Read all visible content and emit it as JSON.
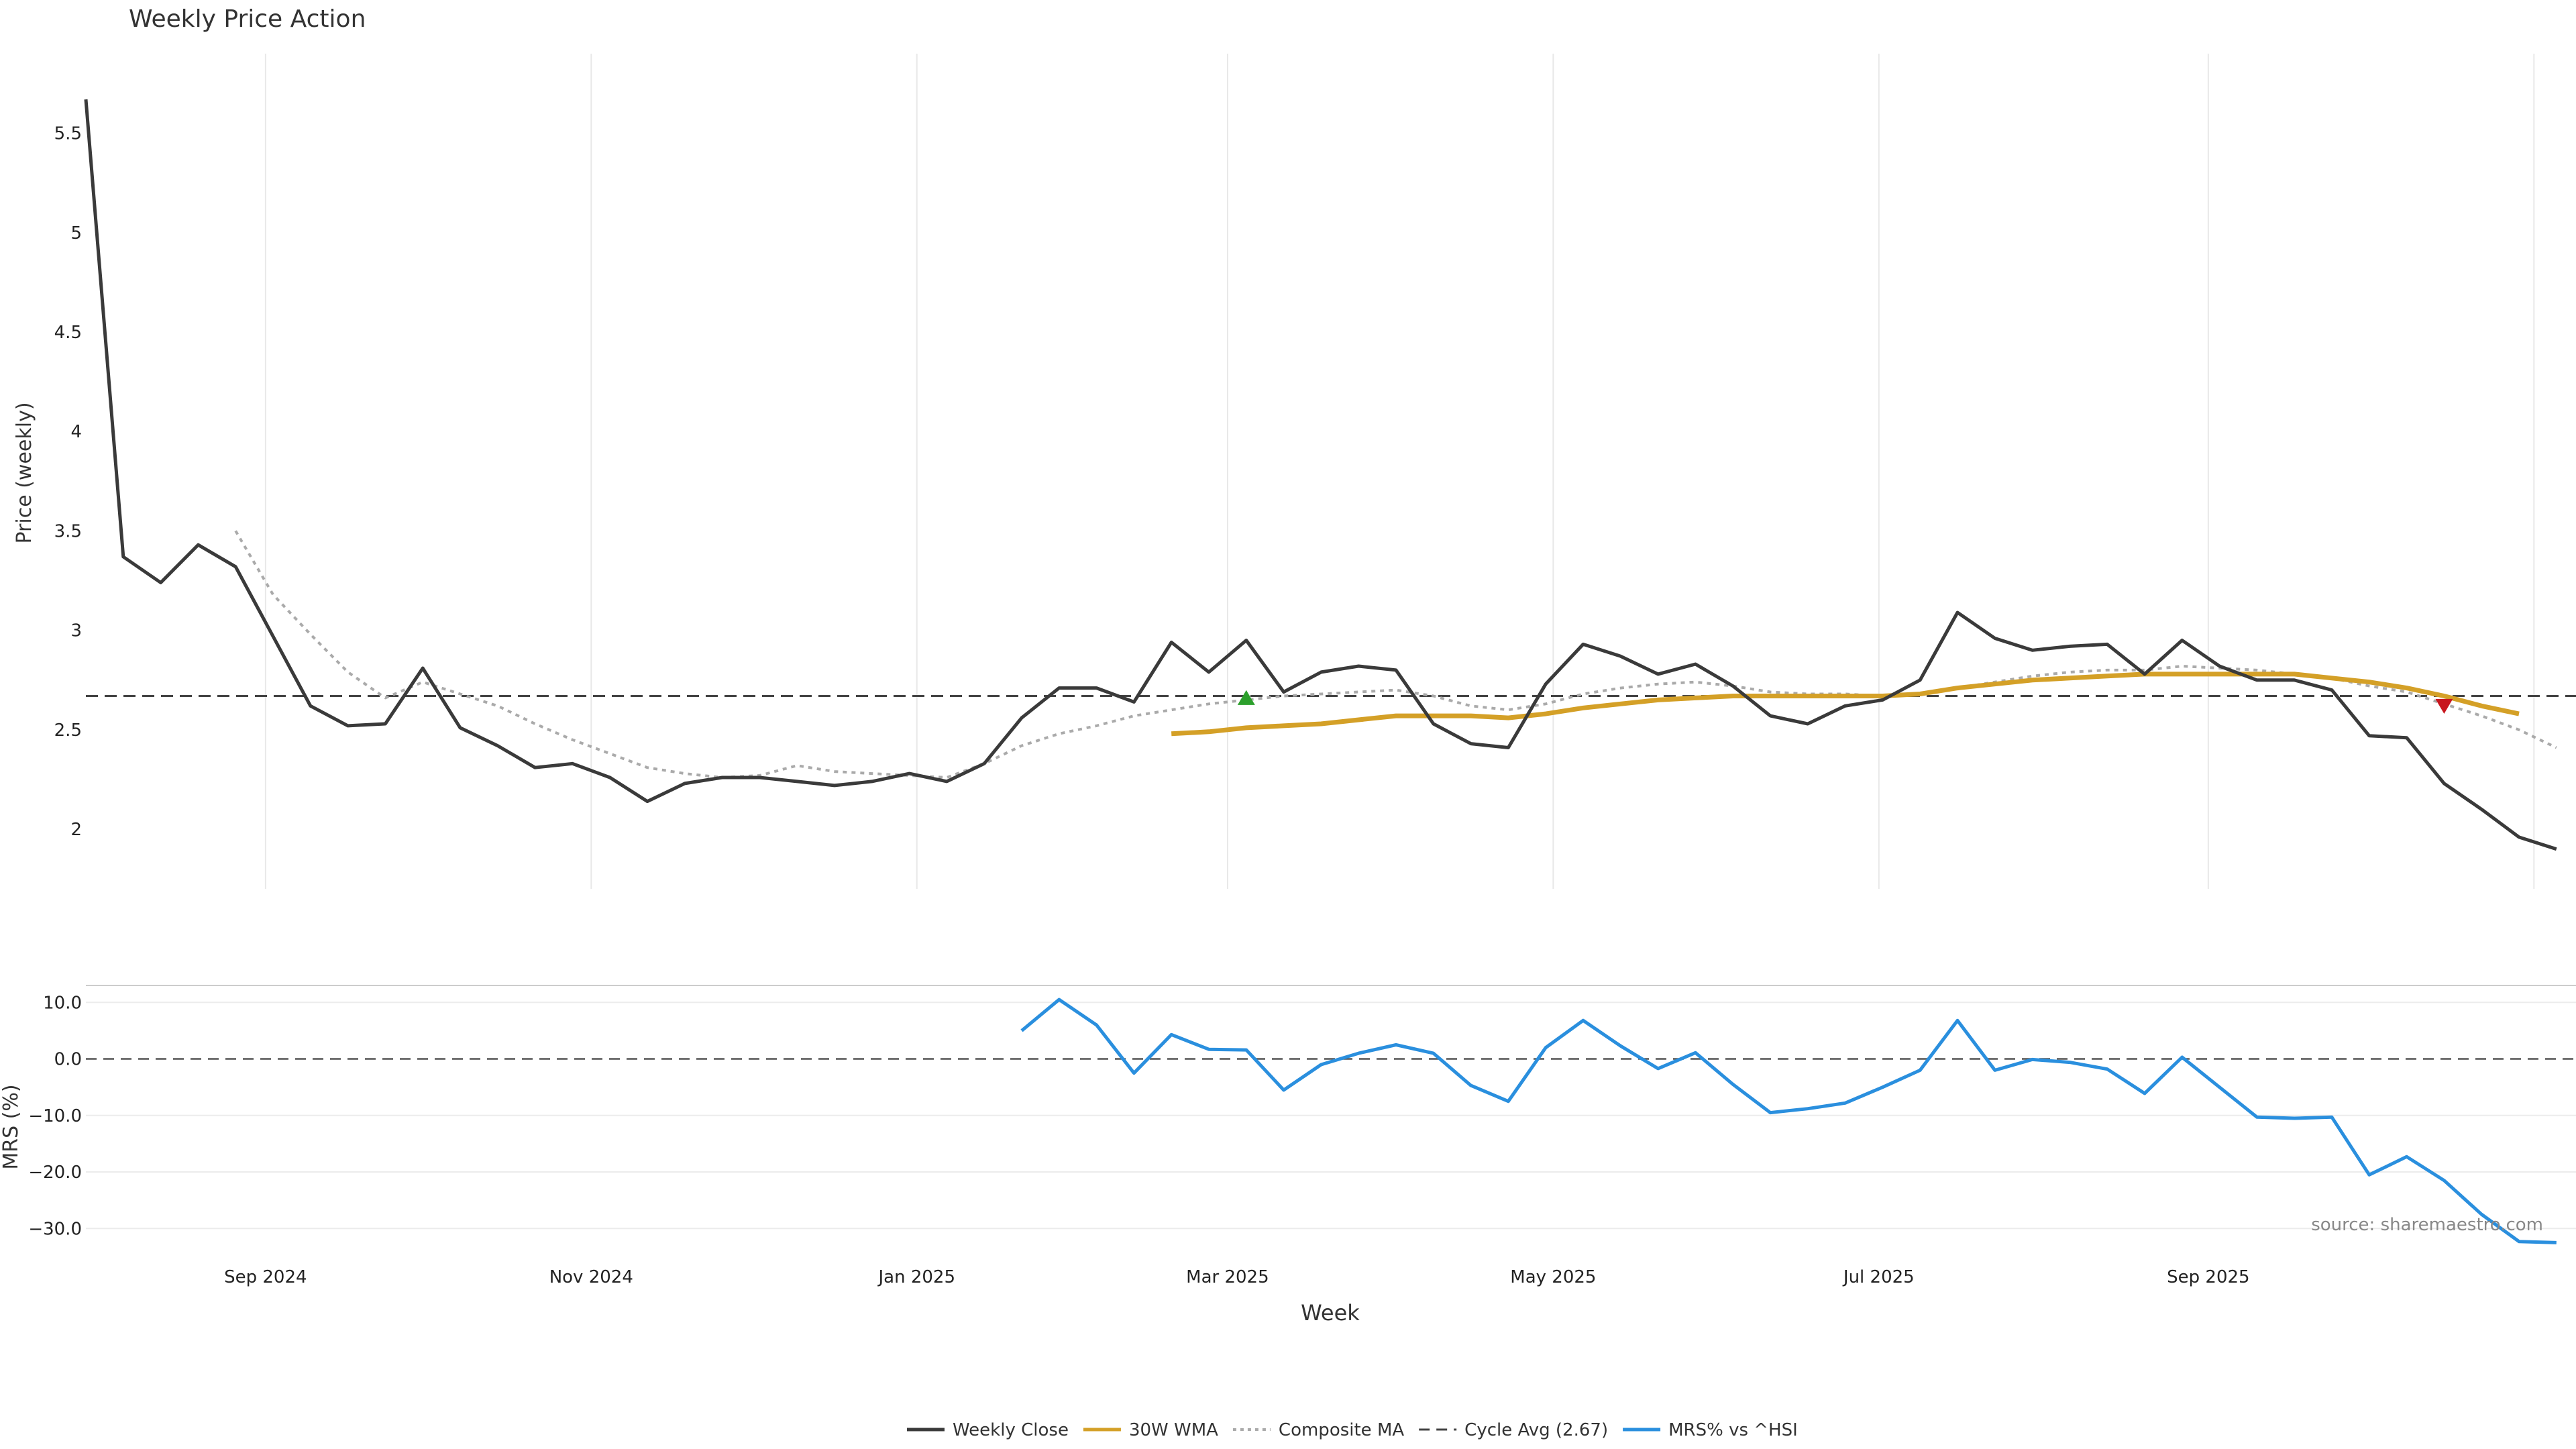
{
  "colors": {
    "close": "#3a3a3a",
    "wma": "#d4a027",
    "composite": "#aaaaaa",
    "cycle": "#444444",
    "mrs": "#2a8fde",
    "buy": "#2ca02c",
    "sell": "#c8161e",
    "grid": "#e8e8e8"
  },
  "chart_data": [
    {
      "type": "line",
      "title": "Weekly Price Action",
      "xlabel": "",
      "ylabel": "Price (weekly)",
      "ylim": [
        1.7,
        5.9
      ],
      "yticks": [
        2,
        2.5,
        3,
        3.5,
        4,
        4.5,
        5,
        5.5
      ],
      "ytick_labels": [
        "2",
        "2.5",
        "3",
        "3.5",
        "4",
        "4.5",
        "5",
        "5.5"
      ],
      "cycle_avg": 2.67,
      "start_week": "2024-07-19",
      "series": [
        {
          "name": "Weekly Close",
          "start_index": 0,
          "values": [
            5.67,
            3.37,
            3.24,
            3.43,
            3.32,
            2.97,
            2.62,
            2.52,
            2.53,
            2.81,
            2.51,
            2.42,
            2.31,
            2.33,
            2.26,
            2.14,
            2.23,
            2.26,
            2.26,
            2.24,
            2.22,
            2.24,
            2.28,
            2.24,
            2.33,
            2.56,
            2.71,
            2.71,
            2.64,
            2.94,
            2.79,
            2.95,
            2.69,
            2.79,
            2.82,
            2.8,
            2.53,
            2.43,
            2.41,
            2.73,
            2.93,
            2.87,
            2.78,
            2.83,
            2.72,
            2.57,
            2.53,
            2.62,
            2.65,
            2.75,
            3.09,
            2.96,
            2.9,
            2.92,
            2.93,
            2.78,
            2.95,
            2.82,
            2.75,
            2.75,
            2.7,
            2.47,
            2.46,
            2.23,
            2.1,
            1.96,
            1.9
          ]
        },
        {
          "name": "30W WMA",
          "start_index": 29,
          "values": [
            2.48,
            2.49,
            2.51,
            2.52,
            2.53,
            2.55,
            2.57,
            2.57,
            2.57,
            2.56,
            2.58,
            2.61,
            2.63,
            2.65,
            2.66,
            2.67,
            2.67,
            2.67,
            2.67,
            2.67,
            2.68,
            2.71,
            2.73,
            2.75,
            2.76,
            2.77,
            2.78,
            2.78,
            2.78,
            2.78,
            2.78,
            2.76,
            2.74,
            2.71,
            2.67,
            2.62,
            2.58
          ]
        },
        {
          "name": "Composite MA",
          "start_index": 4,
          "values": [
            3.5,
            3.18,
            2.98,
            2.79,
            2.66,
            2.74,
            2.68,
            2.62,
            2.53,
            2.45,
            2.38,
            2.31,
            2.28,
            2.26,
            2.27,
            2.32,
            2.29,
            2.28,
            2.27,
            2.26,
            2.33,
            2.42,
            2.48,
            2.52,
            2.57,
            2.6,
            2.63,
            2.65,
            2.67,
            2.68,
            2.69,
            2.7,
            2.67,
            2.62,
            2.6,
            2.63,
            2.68,
            2.71,
            2.73,
            2.74,
            2.72,
            2.69,
            2.68,
            2.68,
            2.67,
            2.68,
            2.71,
            2.74,
            2.77,
            2.79,
            2.8,
            2.8,
            2.82,
            2.81,
            2.8,
            2.78,
            2.76,
            2.72,
            2.69,
            2.63,
            2.57,
            2.5,
            2.41
          ]
        }
      ],
      "markers": [
        {
          "type": "buy",
          "index": 31,
          "value": 2.66
        },
        {
          "type": "sell",
          "index": 63,
          "value": 2.62
        }
      ]
    },
    {
      "type": "line",
      "ylabel": "MRS (%)",
      "xlabel": "Week",
      "ylim": [
        -34,
        13
      ],
      "yticks": [
        10,
        0,
        -10,
        -20,
        -30
      ],
      "ytick_labels": [
        "10.0",
        "0.0",
        "−10.0",
        "−20.0",
        "−30.0"
      ],
      "zero_line": 0,
      "series": [
        {
          "name": "MRS% vs ^HSI",
          "start_index": 25,
          "values": [
            5.0,
            10.5,
            6.0,
            -2.5,
            4.3,
            1.7,
            1.6,
            -5.5,
            -1.0,
            1.0,
            2.5,
            1.0,
            -4.7,
            -7.5,
            2.0,
            6.8,
            2.3,
            -1.7,
            1.1,
            -4.5,
            -9.5,
            -8.8,
            -7.8,
            -5.0,
            -2.0,
            6.8,
            -2.0,
            -0.1,
            -0.6,
            -1.8,
            -6.1,
            0.3,
            -5.0,
            -10.3,
            -10.5,
            -10.3,
            -20.5,
            -17.3,
            -21.5,
            -27.5,
            -32.3,
            -32.5
          ]
        }
      ]
    }
  ],
  "x_axis": {
    "ticks": [
      {
        "label": "Sep 2024",
        "index": 4.8
      },
      {
        "label": "Nov 2024",
        "index": 13.5
      },
      {
        "label": "Jan 2025",
        "index": 22.2
      },
      {
        "label": "Mar 2025",
        "index": 30.5
      },
      {
        "label": "May 2025",
        "index": 39.2
      },
      {
        "label": "Jul 2025",
        "index": 47.9
      },
      {
        "label": "Sep 2025",
        "index": 56.7
      },
      {
        "label": "",
        "index": 65.4
      }
    ],
    "n_points": 67
  },
  "source": "source: sharemaestro.com",
  "legend": [
    {
      "label": "Weekly Close",
      "style": "solid",
      "color_key": "close"
    },
    {
      "label": "30W WMA",
      "style": "solid",
      "color_key": "wma"
    },
    {
      "label": "Composite MA",
      "style": "dotted",
      "color_key": "composite"
    },
    {
      "label": "Cycle Avg (2.67)",
      "style": "dashed",
      "color_key": "cycle"
    },
    {
      "label": "MRS% vs ^HSI",
      "style": "solid",
      "color_key": "mrs"
    }
  ]
}
